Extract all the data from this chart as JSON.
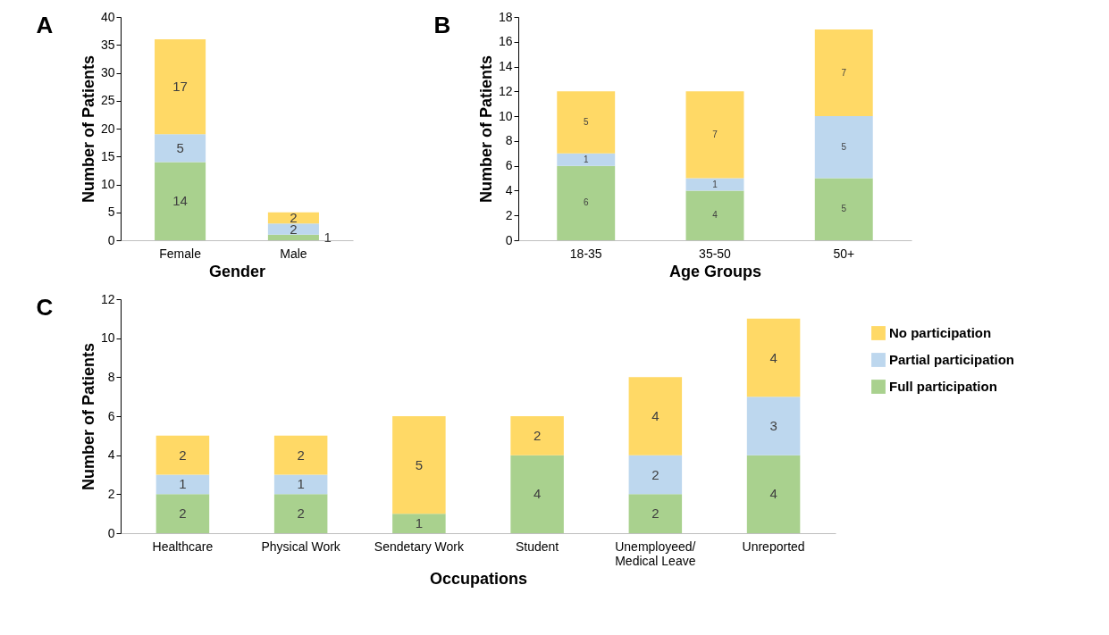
{
  "chart_data": [
    {
      "type": "bar",
      "stacked": true,
      "data_labels": true,
      "legend": false,
      "grid": false,
      "annotations": [
        "A"
      ],
      "xlabel": "Gender",
      "ylabel": "Number of Patients",
      "categories": [
        "Female",
        "Male"
      ],
      "ylim": [
        0,
        40
      ],
      "yticks": [
        0,
        5,
        10,
        15,
        20,
        25,
        30,
        35,
        40
      ],
      "series": [
        {
          "color": "#a9d18e",
          "values": [
            14,
            1
          ]
        },
        {
          "color": "#bdd7ee",
          "values": [
            5,
            2
          ]
        },
        {
          "color": "#ffd966",
          "values": [
            17,
            2
          ]
        }
      ]
    },
    {
      "type": "bar",
      "stacked": true,
      "data_labels": true,
      "legend": false,
      "grid": false,
      "annotations": [
        "B"
      ],
      "xlabel": "Age Groups",
      "ylabel": "Number of Patients",
      "categories": [
        "18-35",
        "35-50",
        "50+"
      ],
      "ylim": [
        0,
        18
      ],
      "yticks": [
        0,
        2,
        4,
        6,
        8,
        10,
        12,
        14,
        16,
        18
      ],
      "series": [
        {
          "color": "#a9d18e",
          "values": [
            6,
            4,
            5
          ]
        },
        {
          "color": "#bdd7ee",
          "values": [
            1,
            1,
            5
          ]
        },
        {
          "color": "#ffd966",
          "values": [
            5,
            7,
            7
          ]
        }
      ]
    },
    {
      "type": "bar",
      "stacked": true,
      "data_labels": true,
      "legend": "right",
      "grid": false,
      "annotations": [
        "C"
      ],
      "xlabel": "Occupations",
      "ylabel": "Number of Patients",
      "categories": [
        "Healthcare",
        "Physical Work",
        "Sendetary Work",
        "Student",
        "Unemployeed/\nMedical Leave",
        "Unreported"
      ],
      "ylim": [
        0,
        12
      ],
      "yticks": [
        0,
        2,
        4,
        6,
        8,
        10,
        12
      ],
      "series": [
        {
          "name": "Full participation",
          "color": "#a9d18e",
          "values": [
            2,
            2,
            1,
            4,
            2,
            4
          ]
        },
        {
          "name": "Partial participation",
          "color": "#bdd7ee",
          "values": [
            1,
            1,
            null,
            null,
            2,
            3
          ]
        },
        {
          "name": "No participation",
          "color": "#ffd966",
          "values": [
            2,
            2,
            5,
            2,
            4,
            4
          ]
        }
      ]
    }
  ]
}
